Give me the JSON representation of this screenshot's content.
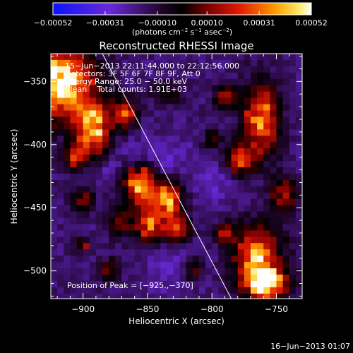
{
  "chart_data": {
    "type": "heatmap",
    "title": "Reconstructed RHESSI Image",
    "xlabel": "Heliocentric X (arcsec)",
    "ylabel": "Heliocentric Y (arcsec)",
    "xlim": [
      -925,
      -730
    ],
    "ylim": [
      -522,
      -328
    ],
    "x_ticks": [
      -900,
      -850,
      -800,
      -750
    ],
    "y_ticks": [
      -350,
      -400,
      -450,
      -500
    ],
    "x_tick_labels": [
      "−900",
      "−850",
      "−800",
      "−750"
    ],
    "y_tick_labels": [
      "−350",
      "−400",
      "−450",
      "−500"
    ],
    "colorbar": {
      "min": -0.00052,
      "max": 0.00052,
      "tick_values": [
        -0.00052,
        -0.00031,
        -0.0001,
        0.0001,
        0.00031,
        0.00052
      ],
      "tick_labels": [
        "−0.00052",
        "−0.00031",
        "−0.00010",
        "0.00010",
        "0.00031",
        "0.00052"
      ],
      "unit_parts": [
        "(photons cm",
        "−2",
        " s",
        "−1",
        " asec",
        "−2",
        ")"
      ]
    },
    "annotations": [
      "15−Jun−2013 22:11:44.000 to 22:12:56.000",
      "Detectors: 3F 5F 6F 7F 8F 9F, Att 0",
      "Energy Range: 25.0 − 50.0 keV",
      "Clean    Total counts: 1.91E+03"
    ],
    "peak_label": "Position of Peak = [−925.,−370]",
    "limb_line": {
      "x": [
        -885,
        -785
      ],
      "y": [
        -328,
        -522
      ]
    },
    "image_grid": {
      "x0": -925,
      "y0": -328,
      "dx": 5,
      "dy": -5,
      "cols": 39,
      "rows": 39,
      "sources": [
        {
          "x": -920,
          "y": -352,
          "sx": 20,
          "sy": 20,
          "a": 1.25
        },
        {
          "x": -892,
          "y": -388,
          "sx": 9,
          "sy": 14,
          "a": 1.0
        },
        {
          "x": -868,
          "y": -375,
          "sx": 7,
          "sy": 8,
          "a": 0.7
        },
        {
          "x": -906,
          "y": -410,
          "sx": 6,
          "sy": 7,
          "a": 0.6
        },
        {
          "x": -855,
          "y": -432,
          "sx": 9,
          "sy": 12,
          "a": 1.05
        },
        {
          "x": -834,
          "y": -445,
          "sx": 8,
          "sy": 10,
          "a": 0.95
        },
        {
          "x": -848,
          "y": -465,
          "sx": 8,
          "sy": 8,
          "a": 0.85
        },
        {
          "x": -826,
          "y": -468,
          "sx": 6,
          "sy": 7,
          "a": 0.7
        },
        {
          "x": -872,
          "y": -462,
          "sx": 6,
          "sy": 8,
          "a": 0.55
        },
        {
          "x": -880,
          "y": -500,
          "sx": 5,
          "sy": 6,
          "a": 0.5
        },
        {
          "x": -900,
          "y": -445,
          "sx": 6,
          "sy": 6,
          "a": 0.5
        },
        {
          "x": -762,
          "y": -380,
          "sx": 10,
          "sy": 20,
          "a": 0.85
        },
        {
          "x": -778,
          "y": -412,
          "sx": 8,
          "sy": 8,
          "a": 0.7
        },
        {
          "x": -745,
          "y": -440,
          "sx": 7,
          "sy": 10,
          "a": 0.6
        },
        {
          "x": -790,
          "y": -362,
          "sx": 6,
          "sy": 7,
          "a": 0.55
        },
        {
          "x": -800,
          "y": -395,
          "sx": 5,
          "sy": 6,
          "a": 0.45
        },
        {
          "x": -765,
          "y": -488,
          "sx": 13,
          "sy": 16,
          "a": 0.95
        },
        {
          "x": -758,
          "y": -510,
          "sx": 11,
          "sy": 8,
          "a": 1.25
        },
        {
          "x": -790,
          "y": -470,
          "sx": 6,
          "sy": 6,
          "a": 0.45
        },
        {
          "x": -815,
          "y": -500,
          "sx": 6,
          "sy": 6,
          "a": 0.45
        },
        {
          "x": -835,
          "y": -360,
          "sx": 8,
          "sy": 6,
          "a": 0.35
        },
        {
          "x": -900,
          "y": -480,
          "sx": 4,
          "sy": 4,
          "a": 0.55
        }
      ],
      "holes": [
        {
          "x": -845,
          "y": -410,
          "sx": 18,
          "sy": 10,
          "a": 0.55
        },
        {
          "x": -830,
          "y": -500,
          "sx": 14,
          "sy": 12,
          "a": 0.4
        },
        {
          "x": -800,
          "y": -430,
          "sx": 10,
          "sy": 14,
          "a": 0.45
        },
        {
          "x": -880,
          "y": -420,
          "sx": 6,
          "sy": 6,
          "a": 0.3
        }
      ]
    }
  },
  "footer_timestamp": "16−Jun−2013 01:07"
}
